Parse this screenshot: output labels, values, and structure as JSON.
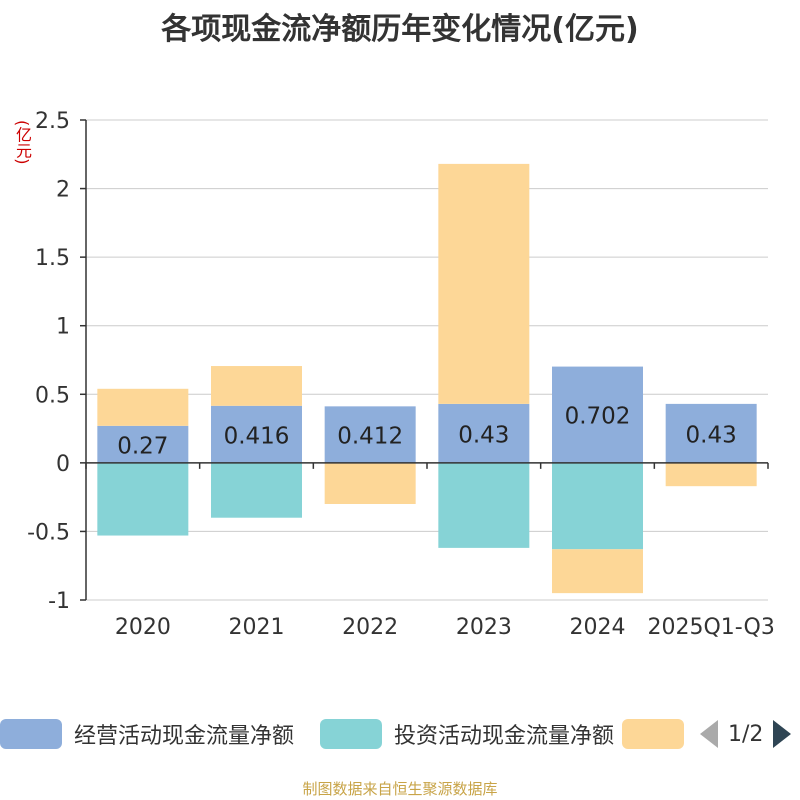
{
  "chart_data": {
    "type": "bar",
    "stacked": true,
    "title": "各项现金流净额历年变化情况(亿元)",
    "ylabel": "(亿元)",
    "categories": [
      "2020",
      "2021",
      "2022",
      "2023",
      "2024",
      "2025Q1-Q3"
    ],
    "ylim": [
      -1,
      2.5
    ],
    "yticks": [
      2.5,
      2,
      1.5,
      1,
      0.5,
      0,
      -0.5,
      -1
    ],
    "ytick_labels": [
      "2.5",
      "2",
      "1.5",
      "1",
      "0.5",
      "0",
      "-0.5",
      "-1"
    ],
    "grid": true,
    "series": [
      {
        "name": "经营活动现金流量净额",
        "color": "#8eaedb",
        "values": [
          0.27,
          0.416,
          0.412,
          0.43,
          0.702,
          0.43
        ],
        "labels": [
          "0.27",
          "0.416",
          "0.412",
          "0.43",
          "0.702",
          "0.43"
        ]
      },
      {
        "name": "投资活动现金流量净额",
        "color": "#86d3d6",
        "values": [
          -0.53,
          -0.4,
          0.0,
          -0.62,
          -0.63,
          0.0
        ]
      },
      {
        "name": "",
        "color": "#fdd797",
        "values": [
          0.27,
          0.29,
          -0.3,
          1.75,
          -0.32,
          -0.17
        ]
      }
    ],
    "legend_position": "bottom"
  },
  "legend": {
    "items": [
      "经营活动现金流量净额",
      "投资活动现金流量净额",
      ""
    ],
    "page": "1/2"
  },
  "source": "制图数据来自恒生聚源数据库"
}
